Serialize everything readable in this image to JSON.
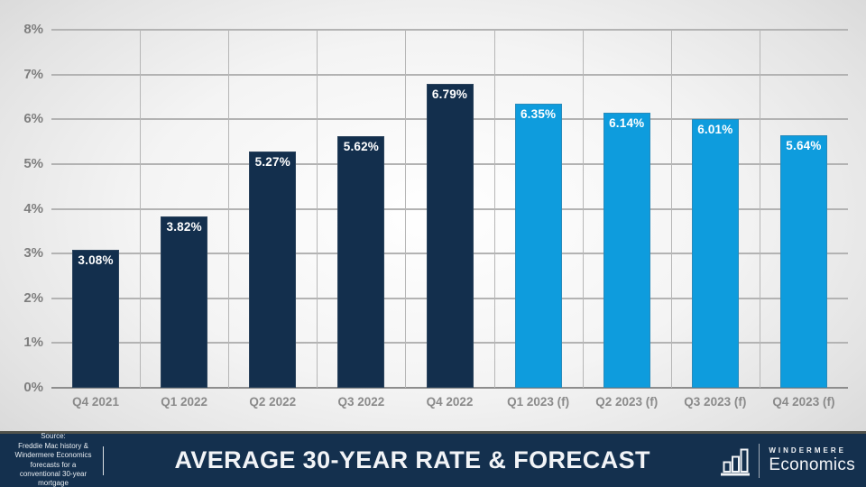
{
  "slide": {
    "footer": {
      "source_note": "Source:\nFreddie Mac history &\nWindermere Economics\nforecasts for a\nconventional 30-year\nmortgage",
      "title": "AVERAGE 30-YEAR RATE & FORECAST",
      "logo": {
        "icon": "bar-chart-icon",
        "brand_top": "WINDERMERE",
        "brand_bottom": "Economics"
      }
    }
  },
  "chart_data": {
    "type": "bar",
    "title": "AVERAGE 30-YEAR RATE & FORECAST",
    "categories": [
      "Q4 2021",
      "Q1 2022",
      "Q2 2022",
      "Q3 2022",
      "Q4 2022",
      "Q1 2023 (f)",
      "Q2 2023 (f)",
      "Q3 2023 (f)",
      "Q4 2023 (f)"
    ],
    "values": [
      3.08,
      3.82,
      5.27,
      5.62,
      6.79,
      6.35,
      6.14,
      6.01,
      5.64
    ],
    "data_labels": [
      "3.08%",
      "3.82%",
      "5.27%",
      "5.62%",
      "6.79%",
      "6.35%",
      "6.14%",
      "6.01%",
      "5.64%"
    ],
    "forecast_flags": [
      false,
      false,
      false,
      false,
      false,
      true,
      true,
      true,
      true
    ],
    "colors": {
      "historical": "#132f4d",
      "forecast": "#0e9cdd"
    },
    "y_ticks": [
      "0%",
      "1%",
      "2%",
      "3%",
      "4%",
      "5%",
      "6%",
      "7%",
      "8%"
    ],
    "ylim": [
      0,
      8
    ],
    "xlabel": "",
    "ylabel": "",
    "grid": "both",
    "legend": "none"
  }
}
